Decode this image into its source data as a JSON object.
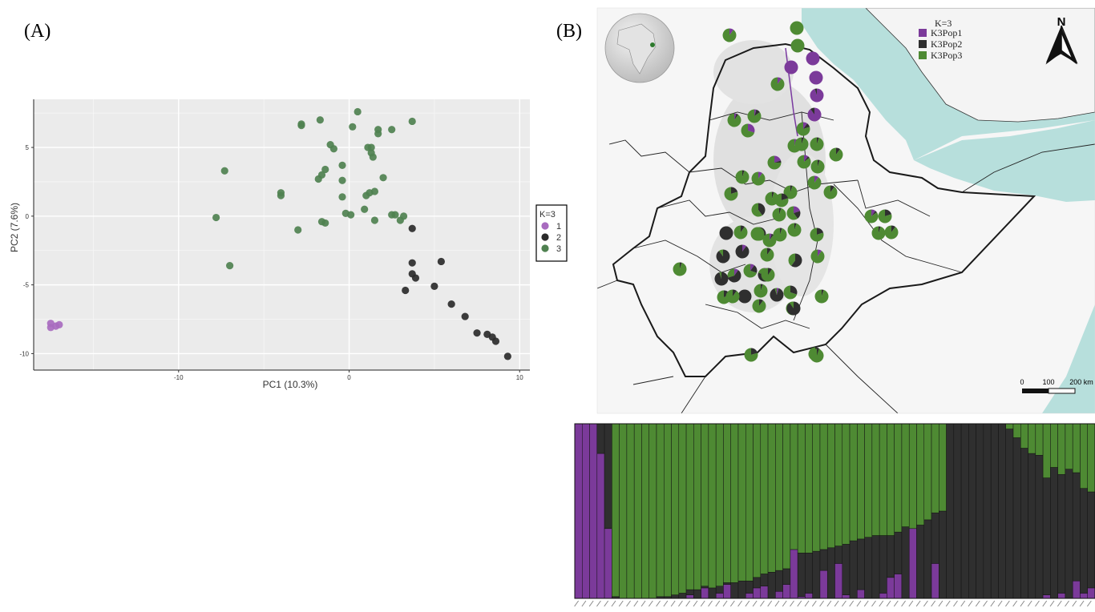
{
  "panels": {
    "a": "(A)",
    "b": "(B)"
  },
  "colors": {
    "pop1": "#7b3a9a",
    "pop2": "#2f2f2f",
    "pop3": "#4e8a33",
    "pca1": "#a86bbf",
    "pca2": "#2b2b2b",
    "pca3": "#4f8150",
    "water": "#b7dfdc"
  },
  "chart_data": [
    {
      "type": "scatter",
      "xlabel": "PC1 (10.3%)",
      "ylabel": "PC2 (7.6%)",
      "xlim": [
        -18.5,
        10.6
      ],
      "ylim": [
        -11.2,
        8.5
      ],
      "xticks": [
        -10,
        0,
        10
      ],
      "yticks": [
        -10,
        -5,
        0,
        5
      ],
      "xtick_labels": [
        "-10",
        "0",
        "10"
      ],
      "ytick_labels": [
        "-10",
        "-5",
        "0",
        "5"
      ],
      "grid": true,
      "legend": {
        "title": "K=3",
        "position": "right",
        "entries": [
          "1",
          "2",
          "3"
        ]
      },
      "series": [
        {
          "name": "1",
          "points": [
            [
              -17.5,
              -7.8
            ],
            [
              -17.5,
              -8.1
            ],
            [
              -17.2,
              -8.0
            ],
            [
              -17.0,
              -7.9
            ]
          ]
        },
        {
          "name": "2",
          "points": [
            [
              3.7,
              -0.9
            ],
            [
              3.7,
              -3.4
            ],
            [
              5.4,
              -3.3
            ],
            [
              3.7,
              -4.2
            ],
            [
              3.9,
              -4.5
            ],
            [
              3.3,
              -5.4
            ],
            [
              5.0,
              -5.1
            ],
            [
              6.0,
              -6.4
            ],
            [
              6.8,
              -7.3
            ],
            [
              7.5,
              -8.5
            ],
            [
              8.1,
              -8.6
            ],
            [
              8.4,
              -8.8
            ],
            [
              8.6,
              -9.1
            ],
            [
              9.3,
              -10.2
            ]
          ]
        },
        {
          "name": "3",
          "points": [
            [
              0.5,
              7.6
            ],
            [
              -1.7,
              7.0
            ],
            [
              -2.8,
              6.6
            ],
            [
              -2.8,
              6.7
            ],
            [
              3.7,
              6.9
            ],
            [
              0.2,
              6.5
            ],
            [
              1.7,
              6.3
            ],
            [
              2.5,
              6.3
            ],
            [
              1.7,
              6.0
            ],
            [
              -1.1,
              5.2
            ],
            [
              -0.9,
              4.9
            ],
            [
              1.1,
              5.0
            ],
            [
              1.3,
              5.0
            ],
            [
              1.3,
              4.6
            ],
            [
              1.4,
              4.3
            ],
            [
              -0.4,
              3.7
            ],
            [
              -1.4,
              3.4
            ],
            [
              -1.6,
              3.0
            ],
            [
              -1.8,
              2.7
            ],
            [
              2.0,
              2.8
            ],
            [
              -7.3,
              3.3
            ],
            [
              -4.0,
              1.7
            ],
            [
              -4.0,
              1.5
            ],
            [
              -0.4,
              2.6
            ],
            [
              1.5,
              1.8
            ],
            [
              1.2,
              1.7
            ],
            [
              1.0,
              1.5
            ],
            [
              -0.4,
              1.4
            ],
            [
              0.9,
              0.5
            ],
            [
              -0.2,
              0.2
            ],
            [
              0.1,
              0.1
            ],
            [
              2.5,
              0.1
            ],
            [
              2.7,
              0.1
            ],
            [
              3.2,
              0.0
            ],
            [
              3.0,
              -0.3
            ],
            [
              -7.8,
              -0.1
            ],
            [
              -1.6,
              -0.4
            ],
            [
              -1.4,
              -0.5
            ],
            [
              1.5,
              -0.3
            ],
            [
              -3.0,
              -1.0
            ],
            [
              -7.0,
              -3.6
            ]
          ]
        }
      ]
    },
    {
      "type": "map",
      "legend": {
        "title": "K=3",
        "position": "top-right",
        "entries": [
          "K3Pop1",
          "K3Pop2",
          "K3Pop3"
        ]
      },
      "north_label": "N",
      "scalebar": {
        "labels": [
          "0",
          "100",
          "200 km"
        ]
      },
      "sites_note_values_fraction_pop1_pop2_pop3": [
        [
          0.1,
          0.0,
          0.9
        ],
        [
          0.0,
          0.0,
          1.0
        ],
        [
          0.0,
          0.0,
          1.0
        ],
        [
          1.0,
          0.0,
          0.0
        ],
        [
          1.0,
          0.0,
          0.0
        ],
        [
          1.0,
          0.0,
          0.0
        ],
        [
          0.1,
          0.0,
          0.9
        ],
        [
          0.95,
          0.05,
          0.0
        ],
        [
          0.9,
          0.1,
          0.0
        ],
        [
          0.05,
          0.05,
          0.9
        ],
        [
          0.05,
          0.1,
          0.85
        ],
        [
          0.3,
          0.0,
          0.7
        ],
        [
          0.1,
          0.1,
          0.8
        ],
        [
          0.05,
          0.0,
          0.95
        ],
        [
          0.0,
          0.05,
          0.95
        ],
        [
          0.0,
          0.1,
          0.9
        ],
        [
          0.2,
          0.05,
          0.75
        ],
        [
          0.1,
          0.05,
          0.85
        ],
        [
          0.0,
          0.05,
          0.95
        ],
        [
          0.0,
          0.05,
          0.95
        ],
        [
          0.1,
          0.0,
          0.9
        ],
        [
          0.1,
          0.0,
          0.9
        ],
        [
          0.0,
          0.1,
          0.9
        ],
        [
          0.0,
          0.2,
          0.8
        ],
        [
          0.0,
          0.05,
          0.95
        ],
        [
          0.0,
          0.05,
          0.95
        ],
        [
          0.0,
          0.4,
          0.6
        ],
        [
          0.0,
          0.05,
          0.95
        ],
        [
          0.2,
          0.2,
          0.6
        ],
        [
          0.0,
          1.0,
          0.0
        ],
        [
          0.0,
          0.1,
          0.9
        ],
        [
          0.0,
          0.3,
          0.7
        ],
        [
          0.0,
          0.05,
          0.95
        ],
        [
          0.0,
          0.05,
          0.95
        ],
        [
          0.0,
          0.2,
          0.8
        ],
        [
          0.0,
          0.9,
          0.1
        ],
        [
          0.0,
          0.1,
          0.9
        ],
        [
          0.1,
          0.9,
          0.0
        ],
        [
          0.0,
          0.6,
          0.4
        ],
        [
          0.1,
          0.0,
          0.9
        ],
        [
          0.0,
          0.05,
          0.95
        ],
        [
          0.1,
          0.6,
          0.3
        ],
        [
          0.1,
          0.2,
          0.7
        ],
        [
          0.0,
          0.95,
          0.05
        ],
        [
          0.1,
          0.7,
          0.2
        ],
        [
          0.0,
          0.05,
          0.95
        ],
        [
          0.05,
          0.9,
          0.05
        ],
        [
          0.0,
          0.3,
          0.7
        ],
        [
          0.0,
          0.2,
          0.8
        ],
        [
          0.0,
          1.0,
          0.0
        ],
        [
          0.0,
          0.1,
          0.9
        ],
        [
          0.1,
          0.05,
          0.85
        ],
        [
          0.0,
          0.05,
          0.95
        ],
        [
          0.1,
          0.05,
          0.85
        ],
        [
          0.0,
          0.2,
          0.8
        ],
        [
          0.0,
          0.05,
          0.95
        ],
        [
          0.0,
          0.1,
          0.9
        ],
        [
          0.0,
          0.2,
          0.8
        ],
        [
          0.0,
          0.1,
          0.9
        ],
        [
          0.0,
          0.1,
          0.9
        ],
        [
          0.05,
          0.05,
          0.9
        ],
        [
          0.0,
          0.2,
          0.8
        ],
        [
          0.0,
          0.05,
          0.95
        ],
        [
          0.0,
          0.1,
          0.9
        ],
        [
          0.0,
          0.9,
          0.1
        ],
        [
          0.0,
          0.0,
          1.0
        ],
        [
          0.0,
          0.05,
          0.95
        ]
      ]
    },
    {
      "type": "bar",
      "stacked": true,
      "series_order": [
        "K3Pop1",
        "K3Pop2",
        "K3Pop3"
      ],
      "values": [
        [
          1,
          0,
          0
        ],
        [
          1,
          0,
          0
        ],
        [
          1,
          0,
          0
        ],
        [
          0.83,
          0.17,
          0
        ],
        [
          0.4,
          0.6,
          0
        ],
        [
          0,
          0.01,
          0.99
        ],
        [
          0,
          0,
          1
        ],
        [
          0,
          0,
          1
        ],
        [
          0,
          0,
          1
        ],
        [
          0,
          0,
          1
        ],
        [
          0,
          0,
          1
        ],
        [
          0,
          0.01,
          0.99
        ],
        [
          0,
          0.01,
          0.99
        ],
        [
          0,
          0.02,
          0.98
        ],
        [
          0,
          0.03,
          0.97
        ],
        [
          0.02,
          0.03,
          0.95
        ],
        [
          0,
          0.05,
          0.95
        ],
        [
          0.06,
          0.01,
          0.93
        ],
        [
          0,
          0.06,
          0.94
        ],
        [
          0.03,
          0.04,
          0.93
        ],
        [
          0.08,
          0.01,
          0.91
        ],
        [
          0,
          0.09,
          0.91
        ],
        [
          0,
          0.1,
          0.9
        ],
        [
          0.03,
          0.07,
          0.9
        ],
        [
          0.06,
          0.06,
          0.88
        ],
        [
          0.07,
          0.07,
          0.86
        ],
        [
          0,
          0.15,
          0.85
        ],
        [
          0.04,
          0.12,
          0.84
        ],
        [
          0.08,
          0.09,
          0.83
        ],
        [
          0.28,
          0.0,
          0.72
        ],
        [
          0.01,
          0.25,
          0.74
        ],
        [
          0.03,
          0.23,
          0.74
        ],
        [
          0,
          0.27,
          0.73
        ],
        [
          0.16,
          0.12,
          0.72
        ],
        [
          0,
          0.29,
          0.71
        ],
        [
          0.2,
          0.1,
          0.7
        ],
        [
          0.02,
          0.29,
          0.69
        ],
        [
          0,
          0.33,
          0.67
        ],
        [
          0.05,
          0.29,
          0.66
        ],
        [
          0,
          0.35,
          0.65
        ],
        [
          0,
          0.36,
          0.64
        ],
        [
          0.03,
          0.33,
          0.64
        ],
        [
          0.12,
          0.24,
          0.64
        ],
        [
          0.14,
          0.24,
          0.62
        ],
        [
          0,
          0.41,
          0.59
        ],
        [
          0.4,
          0.0,
          0.6
        ],
        [
          0,
          0.42,
          0.58
        ],
        [
          0,
          0.45,
          0.55
        ],
        [
          0.2,
          0.29,
          0.51
        ],
        [
          0,
          0.5,
          0.5
        ],
        [
          0,
          1,
          0
        ],
        [
          0,
          1,
          0
        ],
        [
          0,
          1,
          0
        ],
        [
          0,
          1,
          0
        ],
        [
          0,
          1,
          0
        ],
        [
          0,
          1,
          0
        ],
        [
          0,
          1,
          0
        ],
        [
          0,
          1,
          0
        ],
        [
          0,
          0.97,
          0.03
        ],
        [
          0,
          0.92,
          0.08
        ],
        [
          0,
          0.86,
          0.14
        ],
        [
          0,
          0.83,
          0.17
        ],
        [
          0,
          0.82,
          0.18
        ],
        [
          0.02,
          0.67,
          0.31
        ],
        [
          0,
          0.75,
          0.25
        ],
        [
          0.03,
          0.68,
          0.29
        ],
        [
          0,
          0.74,
          0.26
        ],
        [
          0.1,
          0.62,
          0.28
        ],
        [
          0.03,
          0.6,
          0.37
        ],
        [
          0.06,
          0.55,
          0.39
        ]
      ]
    }
  ]
}
